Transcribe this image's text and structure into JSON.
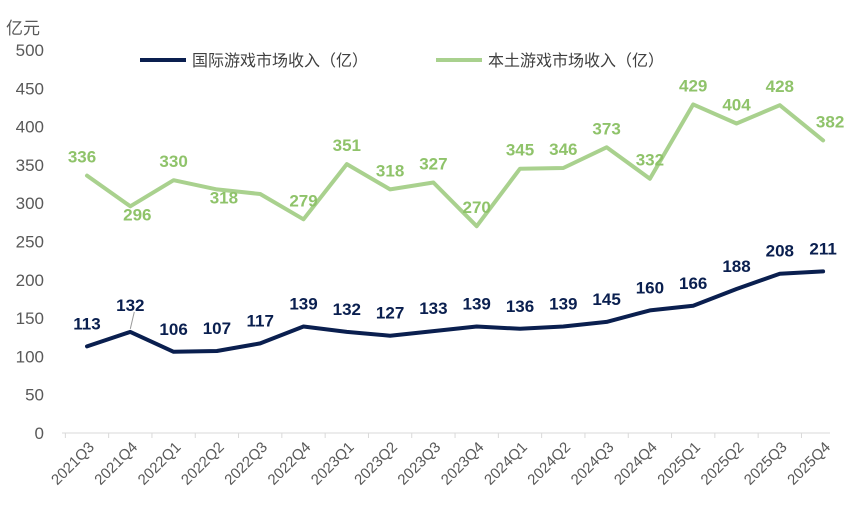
{
  "chart_data": {
    "type": "line",
    "unit_label": "亿元",
    "categories": [
      "2021Q3",
      "2021Q4",
      "2022Q1",
      "2022Q2",
      "2022Q3",
      "2022Q4",
      "2023Q1",
      "2023Q2",
      "2023Q3",
      "2023Q4",
      "2024Q1",
      "2024Q2",
      "2024Q3",
      "2024Q4",
      "2025Q1",
      "2025Q2",
      "2025Q3",
      "2025Q4"
    ],
    "ylim": [
      0,
      500
    ],
    "yticks": [
      0,
      50,
      100,
      150,
      200,
      250,
      300,
      350,
      400,
      450,
      500
    ],
    "grid": false,
    "legend_position": "top",
    "series": [
      {
        "name": "国际游戏市场收入（亿）",
        "color": "#0a1f4f",
        "values": [
          113,
          132,
          106,
          107,
          117,
          139,
          132,
          127,
          133,
          139,
          136,
          139,
          145,
          160,
          166,
          188,
          208,
          211
        ],
        "labels": [
          "113",
          "132",
          "106",
          "107",
          "117",
          "139",
          "132",
          "127",
          "133",
          "139",
          "136",
          "139",
          "145",
          "160",
          "166",
          "188",
          "208",
          "211"
        ]
      },
      {
        "name": "本土游戏市场收入（亿）",
        "color": "#a9d18e",
        "values": [
          336,
          296,
          330,
          318,
          312,
          279,
          351,
          318,
          327,
          270,
          345,
          346,
          373,
          332,
          429,
          404,
          428,
          382
        ],
        "labels": [
          "336",
          "296",
          "330",
          "318",
          "",
          "279",
          "351",
          "318",
          "327",
          "270",
          "345",
          "346",
          "373",
          "332",
          "429",
          "404",
          "428",
          "382"
        ]
      }
    ]
  }
}
